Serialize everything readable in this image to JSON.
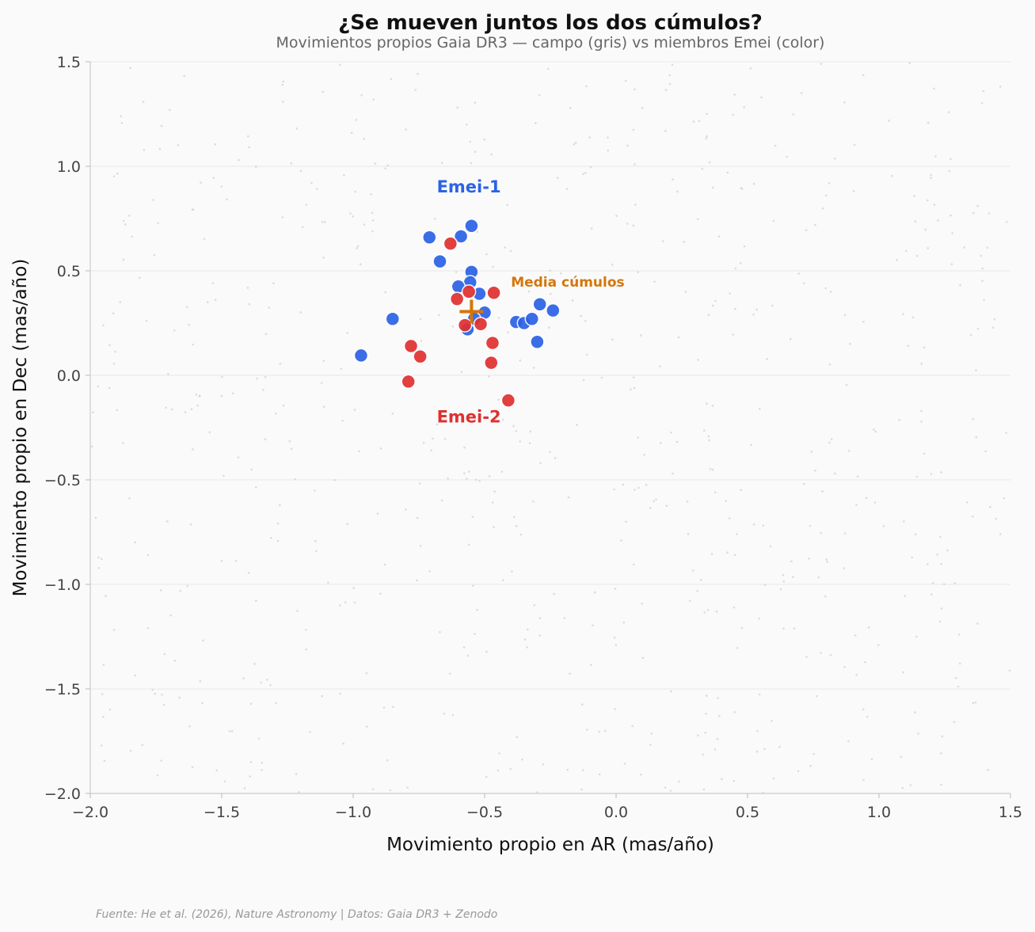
{
  "chart_data": {
    "type": "scatter",
    "title": "¿Se mueven juntos los dos cúmulos?",
    "subtitle": "Movimientos propios Gaia DR3 — campo (gris) vs miembros Emei (color)",
    "xlabel": "Movimiento propio en AR (mas/año)",
    "ylabel": "Movimiento propio en Dec (mas/año)",
    "xlim": [
      -2.0,
      1.5
    ],
    "ylim": [
      -2.0,
      1.5
    ],
    "xticks": [
      -2.0,
      -1.5,
      -1.0,
      -0.5,
      0.0,
      0.5,
      1.0,
      1.5
    ],
    "yticks": [
      -2.0,
      -1.5,
      -1.0,
      -0.5,
      0.0,
      0.5,
      1.0,
      1.5
    ],
    "xtick_labels": [
      "−2.0",
      "−1.5",
      "−1.0",
      "−0.5",
      "0.0",
      "0.5",
      "1.0",
      "1.5"
    ],
    "ytick_labels": [
      "−2.0",
      "−1.5",
      "−1.0",
      "−0.5",
      "0.0",
      "0.5",
      "1.0",
      "1.5"
    ],
    "grid": true,
    "series": [
      {
        "name": "Campo",
        "color": "#cfcfcf",
        "marker": "dot",
        "field_count": 700
      },
      {
        "name": "Emei-1",
        "color": "#2b62e6",
        "points": [
          [
            -0.71,
            0.66
          ],
          [
            -0.59,
            0.665
          ],
          [
            -0.55,
            0.715
          ],
          [
            -0.67,
            0.545
          ],
          [
            -0.55,
            0.495
          ],
          [
            -0.555,
            0.445
          ],
          [
            -0.6,
            0.425
          ],
          [
            -0.52,
            0.39
          ],
          [
            -0.5,
            0.3
          ],
          [
            -0.85,
            0.27
          ],
          [
            -0.97,
            0.095
          ],
          [
            -0.565,
            0.22
          ],
          [
            -0.38,
            0.255
          ],
          [
            -0.35,
            0.25
          ],
          [
            -0.32,
            0.27
          ],
          [
            -0.29,
            0.34
          ],
          [
            -0.24,
            0.31
          ],
          [
            -0.3,
            0.16
          ],
          [
            -0.54,
            0.27
          ]
        ]
      },
      {
        "name": "Emei-2",
        "color": "#e03030",
        "points": [
          [
            -0.63,
            0.63
          ],
          [
            -0.56,
            0.4
          ],
          [
            -0.465,
            0.395
          ],
          [
            -0.605,
            0.365
          ],
          [
            -0.575,
            0.24
          ],
          [
            -0.515,
            0.245
          ],
          [
            -0.47,
            0.155
          ],
          [
            -0.475,
            0.06
          ],
          [
            -0.78,
            0.14
          ],
          [
            -0.745,
            0.09
          ],
          [
            -0.79,
            -0.03
          ],
          [
            -0.41,
            -0.12
          ]
        ]
      }
    ],
    "mean_marker": {
      "label": "Media cúmulos",
      "x": -0.55,
      "y": 0.305,
      "color": "#d4760a"
    },
    "annotations": [
      {
        "text": "Emei-1",
        "x": -0.56,
        "y": 0.875,
        "color": "#2b62e6"
      },
      {
        "text": "Emei-2",
        "x": -0.56,
        "y": -0.225,
        "color": "#e03030"
      },
      {
        "text": "Media cúmulos",
        "x": -0.4,
        "y": 0.425,
        "color": "#d4760a"
      }
    ],
    "source": "Fuente: He et al. (2026), Nature Astronomy | Datos: Gaia DR3 + Zenodo"
  }
}
